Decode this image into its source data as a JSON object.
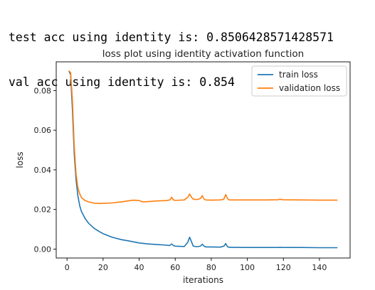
{
  "output": {
    "line1": "test acc using identity is: 0.8506428571428571",
    "line2": "val acc using identity is: 0.854"
  },
  "colors": {
    "train": "#1f77b4",
    "validation": "#ff7f0e",
    "axis": "#000000",
    "legend_border": "#cccccc"
  },
  "chart_data": {
    "type": "line",
    "title": "loss plot using identity activation function",
    "xlabel": "iterations",
    "ylabel": "loss",
    "xlim": [
      -6,
      157
    ],
    "ylim": [
      -0.0045,
      0.0945
    ],
    "xticks": [
      0,
      20,
      40,
      60,
      80,
      100,
      120,
      140
    ],
    "xtick_labels": [
      "0",
      "20",
      "40",
      "60",
      "80",
      "100",
      "120",
      "140"
    ],
    "yticks": [
      0.0,
      0.02,
      0.04,
      0.06,
      0.08
    ],
    "ytick_labels": [
      "0.00",
      "0.02",
      "0.04",
      "0.06",
      "0.08"
    ],
    "grid": false,
    "legend_position": "top-right",
    "series": [
      {
        "name": "train loss",
        "color": "#1f77b4",
        "x": [
          1,
          2,
          3,
          4,
          5,
          6,
          7,
          8,
          10,
          12,
          15,
          18,
          20,
          25,
          30,
          35,
          40,
          45,
          50,
          55,
          57,
          58,
          59,
          60,
          65,
          67,
          68,
          69,
          70,
          72,
          74,
          75,
          76,
          77,
          80,
          85,
          87,
          88,
          89,
          90,
          100,
          110,
          117,
          118,
          120,
          130,
          140,
          150
        ],
        "y": [
          0.09,
          0.088,
          0.07,
          0.048,
          0.035,
          0.027,
          0.022,
          0.019,
          0.0155,
          0.013,
          0.0105,
          0.0088,
          0.0078,
          0.006,
          0.0048,
          0.004,
          0.0031,
          0.0026,
          0.0023,
          0.002,
          0.0018,
          0.0026,
          0.0018,
          0.0015,
          0.0013,
          0.0035,
          0.006,
          0.0038,
          0.0015,
          0.0012,
          0.0015,
          0.0025,
          0.0015,
          0.0011,
          0.0011,
          0.001,
          0.0015,
          0.0028,
          0.0012,
          0.0009,
          0.0008,
          0.0008,
          0.0008,
          0.0009,
          0.0008,
          0.0008,
          0.0007,
          0.0007
        ]
      },
      {
        "name": "validation loss",
        "color": "#ff7f0e",
        "x": [
          1,
          2,
          3,
          4,
          5,
          6,
          7,
          8,
          10,
          12,
          15,
          18,
          20,
          25,
          30,
          35,
          37,
          40,
          42,
          45,
          50,
          55,
          57,
          58,
          59,
          60,
          65,
          67,
          68,
          69,
          70,
          72,
          74,
          75,
          76,
          77,
          80,
          85,
          87,
          88,
          89,
          90,
          100,
          110,
          117,
          118,
          120,
          130,
          140,
          150
        ],
        "y": [
          0.09,
          0.089,
          0.075,
          0.052,
          0.038,
          0.031,
          0.028,
          0.026,
          0.0245,
          0.0238,
          0.0232,
          0.023,
          0.0231,
          0.0233,
          0.0238,
          0.0245,
          0.0247,
          0.0245,
          0.0238,
          0.024,
          0.0243,
          0.0245,
          0.0248,
          0.0262,
          0.0248,
          0.0246,
          0.0248,
          0.0262,
          0.0278,
          0.0262,
          0.0252,
          0.025,
          0.0255,
          0.027,
          0.0252,
          0.0248,
          0.0247,
          0.0248,
          0.0252,
          0.0275,
          0.0255,
          0.0248,
          0.0248,
          0.0248,
          0.0249,
          0.0252,
          0.0249,
          0.0248,
          0.0247,
          0.0247
        ]
      }
    ]
  }
}
